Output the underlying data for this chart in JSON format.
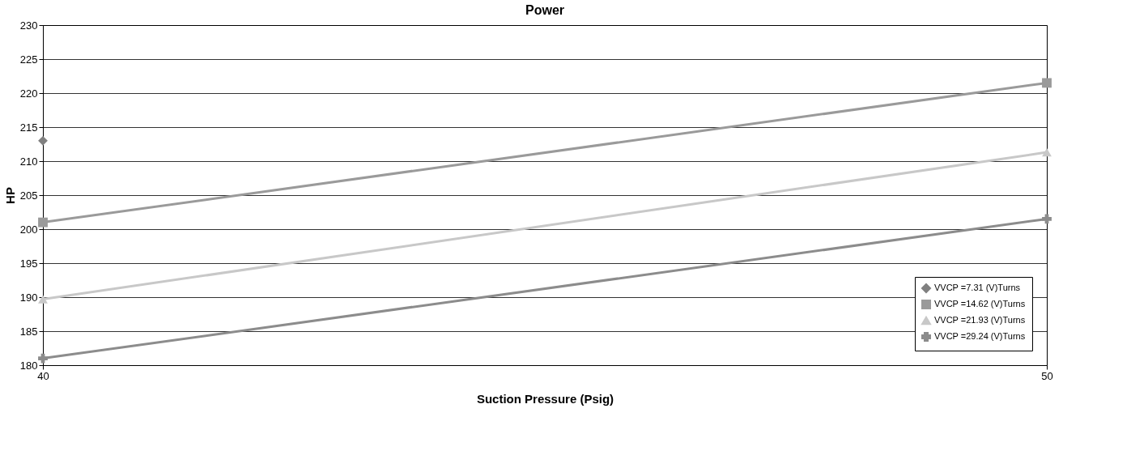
{
  "chart_data": {
    "type": "line",
    "title": "Power",
    "xlabel": "Suction Pressure (Psig)",
    "ylabel": "HP",
    "x": [
      40,
      50
    ],
    "xlim": [
      40,
      50
    ],
    "xticks": [
      40,
      50
    ],
    "ylim": [
      180,
      230
    ],
    "yticks": [
      180,
      185,
      190,
      195,
      200,
      205,
      210,
      215,
      220,
      225,
      230
    ],
    "grid": "y",
    "legend": "bottom right",
    "line_style": "solid",
    "series": [
      {
        "name": "VVCP =7.31 (V)Turns",
        "color": "#808080",
        "marker": "diamond",
        "values": [
          213,
          null
        ]
      },
      {
        "name": "VVCP =14.62 (V)Turns",
        "color": "#9a9a9a",
        "marker": "square",
        "values": [
          201,
          221.5
        ]
      },
      {
        "name": "VVCP =21.93 (V)Turns",
        "color": "#c8c8c8",
        "marker": "triangle",
        "values": [
          189.7,
          211.3
        ]
      },
      {
        "name": "VVCP =29.24 (V)Turns",
        "color": "#8c8c8c",
        "marker": "cross",
        "values": [
          181,
          201.5
        ]
      }
    ]
  }
}
